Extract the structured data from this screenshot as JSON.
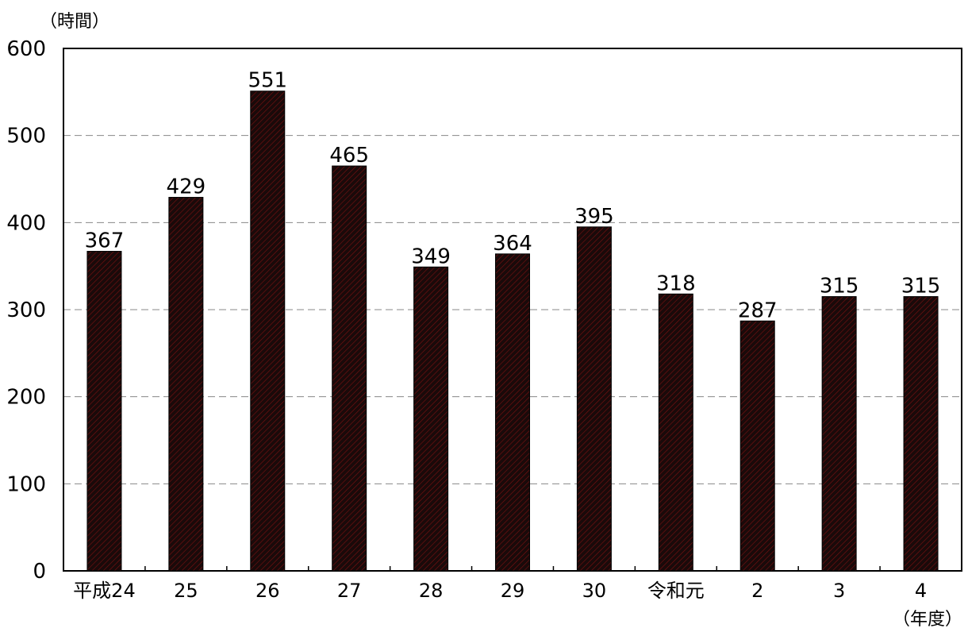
{
  "chart_data": {
    "type": "bar",
    "ylabel": "（時間）",
    "xlabel": "（年度）",
    "categories": [
      "平成24",
      "25",
      "26",
      "27",
      "28",
      "29",
      "30",
      "令和元",
      "2",
      "3",
      "4"
    ],
    "values": [
      367,
      429,
      551,
      465,
      349,
      364,
      395,
      318,
      287,
      315,
      315
    ],
    "data_labels": [
      "367",
      "429",
      "551",
      "465",
      "349",
      "364",
      "395",
      "318",
      "287",
      "315",
      "315"
    ],
    "ylim": [
      0,
      600
    ],
    "yticks": [
      0,
      100,
      200,
      300,
      400,
      500,
      600
    ],
    "ytick_labels": [
      "0",
      "100",
      "200",
      "300",
      "400",
      "500",
      "600"
    ],
    "grid": true,
    "bar_color": "#1a0a0a",
    "hatch_color": "#7a1010"
  }
}
